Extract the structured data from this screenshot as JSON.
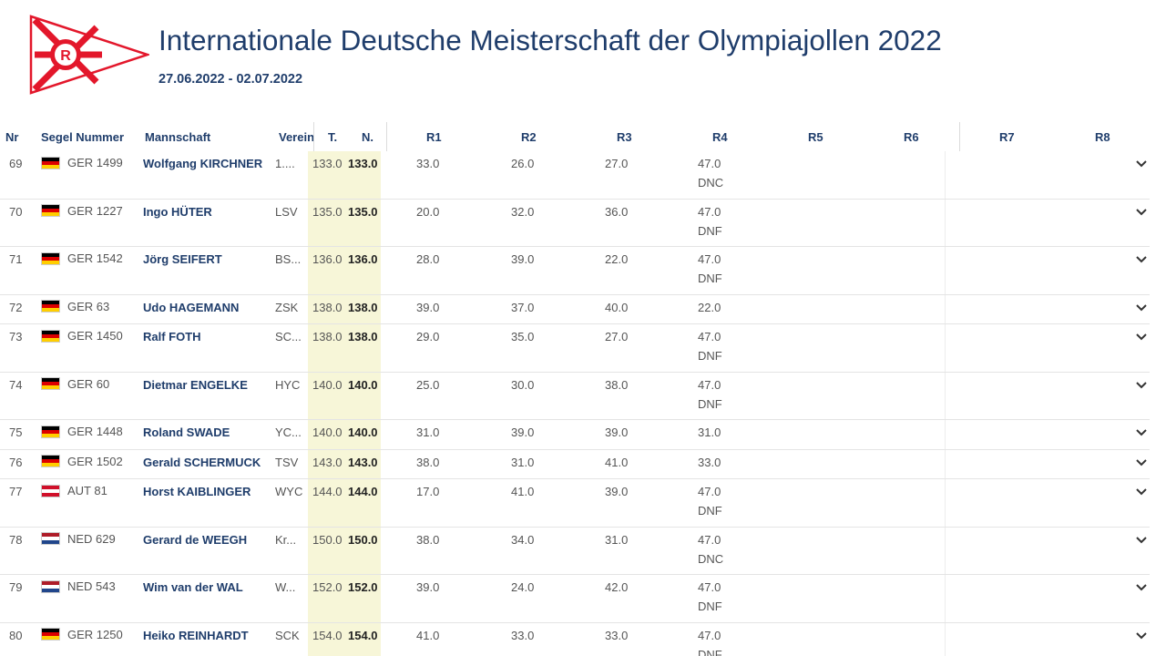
{
  "event": {
    "title": "Internationale Deutsche Meisterschaft der Olympiajollen 2022",
    "dates": "27.06.2022 - 02.07.2022",
    "logo_letter": "R"
  },
  "columns": {
    "nr": "Nr",
    "sail": "Segel Nummer",
    "team": "Mannschaft",
    "club": "Verein",
    "total": "T.",
    "net": "N.",
    "r1": "R1",
    "r2": "R2",
    "r3": "R3",
    "r4": "R4",
    "r5": "R5",
    "r6": "R6",
    "r7": "R7",
    "r8": "R8"
  },
  "colors": {
    "accent": "#1f3d6b",
    "highlight": "#f7f6d8",
    "burgee_red": "#e3172b"
  },
  "rows": [
    {
      "nr": "69",
      "flag": "ger",
      "sail": "GER 1499",
      "name": "Wolfgang KIRCHNER",
      "club": "1....",
      "total": "133.0",
      "net": "133.0",
      "r1": "33.0",
      "r2": "26.0",
      "r3": "27.0",
      "r4": "47.0",
      "code": "DNC"
    },
    {
      "nr": "70",
      "flag": "ger",
      "sail": "GER 1227",
      "name": "Ingo HÜTER",
      "club": "LSV",
      "total": "135.0",
      "net": "135.0",
      "r1": "20.0",
      "r2": "32.0",
      "r3": "36.0",
      "r4": "47.0",
      "code": "DNF"
    },
    {
      "nr": "71",
      "flag": "ger",
      "sail": "GER 1542",
      "name": "Jörg SEIFERT",
      "club": "BS...",
      "total": "136.0",
      "net": "136.0",
      "r1": "28.0",
      "r2": "39.0",
      "r3": "22.0",
      "r4": "47.0",
      "code": "DNF"
    },
    {
      "nr": "72",
      "flag": "ger",
      "sail": "GER 63",
      "name": "Udo HAGEMANN",
      "club": "ZSK",
      "total": "138.0",
      "net": "138.0",
      "r1": "39.0",
      "r2": "37.0",
      "r3": "40.0",
      "r4": "22.0",
      "code": ""
    },
    {
      "nr": "73",
      "flag": "ger",
      "sail": "GER 1450",
      "name": "Ralf FOTH",
      "club": "SC...",
      "total": "138.0",
      "net": "138.0",
      "r1": "29.0",
      "r2": "35.0",
      "r3": "27.0",
      "r4": "47.0",
      "code": "DNF"
    },
    {
      "nr": "74",
      "flag": "ger",
      "sail": "GER 60",
      "name": "Dietmar ENGELKE",
      "club": "HYC",
      "total": "140.0",
      "net": "140.0",
      "r1": "25.0",
      "r2": "30.0",
      "r3": "38.0",
      "r4": "47.0",
      "code": "DNF"
    },
    {
      "nr": "75",
      "flag": "ger",
      "sail": "GER 1448",
      "name": "Roland SWADE",
      "club": "YC...",
      "total": "140.0",
      "net": "140.0",
      "r1": "31.0",
      "r2": "39.0",
      "r3": "39.0",
      "r4": "31.0",
      "code": ""
    },
    {
      "nr": "76",
      "flag": "ger",
      "sail": "GER 1502",
      "name": "Gerald SCHERMUCK",
      "club": "TSV",
      "total": "143.0",
      "net": "143.0",
      "r1": "38.0",
      "r2": "31.0",
      "r3": "41.0",
      "r4": "33.0",
      "code": ""
    },
    {
      "nr": "77",
      "flag": "aut",
      "sail": "AUT 81",
      "name": "Horst KAIBLINGER",
      "club": "WYC",
      "total": "144.0",
      "net": "144.0",
      "r1": "17.0",
      "r2": "41.0",
      "r3": "39.0",
      "r4": "47.0",
      "code": "DNF"
    },
    {
      "nr": "78",
      "flag": "ned",
      "sail": "NED 629",
      "name": "Gerard de WEEGH",
      "club": "Kr...",
      "total": "150.0",
      "net": "150.0",
      "r1": "38.0",
      "r2": "34.0",
      "r3": "31.0",
      "r4": "47.0",
      "code": "DNC"
    },
    {
      "nr": "79",
      "flag": "ned",
      "sail": "NED 543",
      "name": "Wim van der WAL",
      "club": "W...",
      "total": "152.0",
      "net": "152.0",
      "r1": "39.0",
      "r2": "24.0",
      "r3": "42.0",
      "r4": "47.0",
      "code": "DNF"
    },
    {
      "nr": "80",
      "flag": "ger",
      "sail": "GER 1250",
      "name": "Heiko REINHARDT",
      "club": "SCK",
      "total": "154.0",
      "net": "154.0",
      "r1": "41.0",
      "r2": "33.0",
      "r3": "33.0",
      "r4": "47.0",
      "code": "DNF"
    }
  ]
}
